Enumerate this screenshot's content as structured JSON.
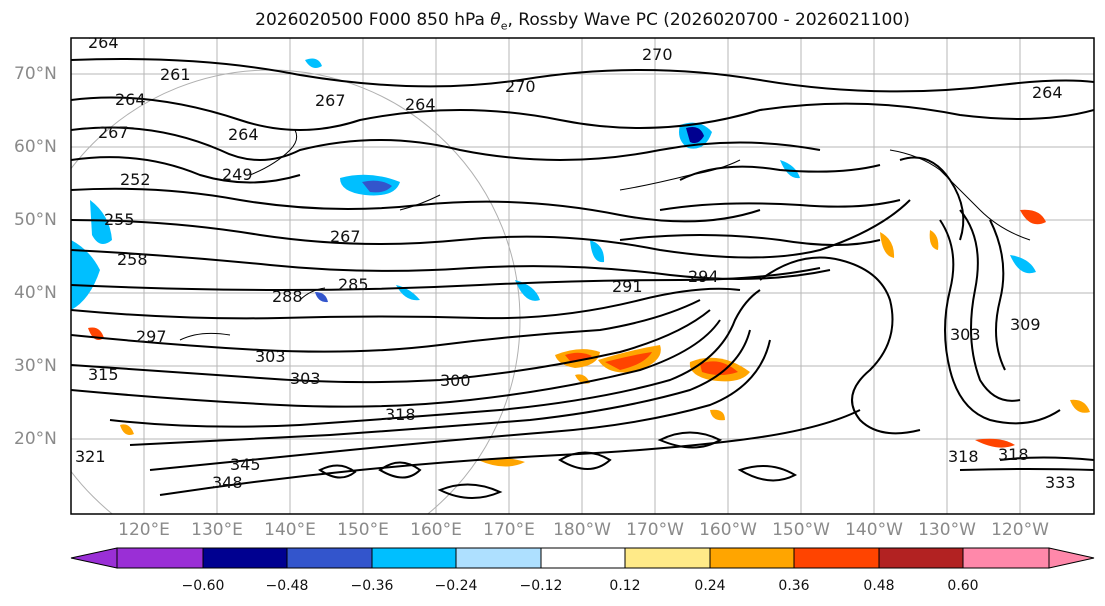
{
  "title_prefix": "2026020500 F000 850 hPa ",
  "title_var": "θ",
  "title_sub": "e",
  "title_suffix": ", Rossby Wave PC (2026020700 - 2026021100)",
  "lat_labels": [
    "70°N",
    "60°N",
    "50°N",
    "40°N",
    "30°N",
    "20°N"
  ],
  "lon_labels": [
    "120°E",
    "130°E",
    "140°E",
    "150°E",
    "160°E",
    "170°E",
    "180°W",
    "170°W",
    "160°W",
    "150°W",
    "140°W",
    "130°W",
    "120°W"
  ],
  "colorbar": {
    "colors": [
      "#9a2fd6",
      "#000090",
      "#3355cc",
      "#00bfff",
      "#aee0ff",
      "#ffffff",
      "#ffea88",
      "#ffa500",
      "#ff4400",
      "#b22222",
      "#ff88aa"
    ],
    "labels": [
      "−0.60",
      "−0.48",
      "−0.36",
      "−0.24",
      "−0.12",
      "0.12",
      "0.24",
      "0.36",
      "0.48",
      "0.60"
    ]
  },
  "contour_labels": [
    "264",
    "261",
    "264",
    "267",
    "264",
    "267",
    "270",
    "270",
    "264",
    "252",
    "249",
    "264",
    "255",
    "258",
    "267",
    "285",
    "288",
    "291",
    "294",
    "297",
    "303",
    "303",
    "300",
    "309",
    "303",
    "315",
    "318",
    "318",
    "321",
    "345",
    "348",
    "333",
    "318"
  ]
}
